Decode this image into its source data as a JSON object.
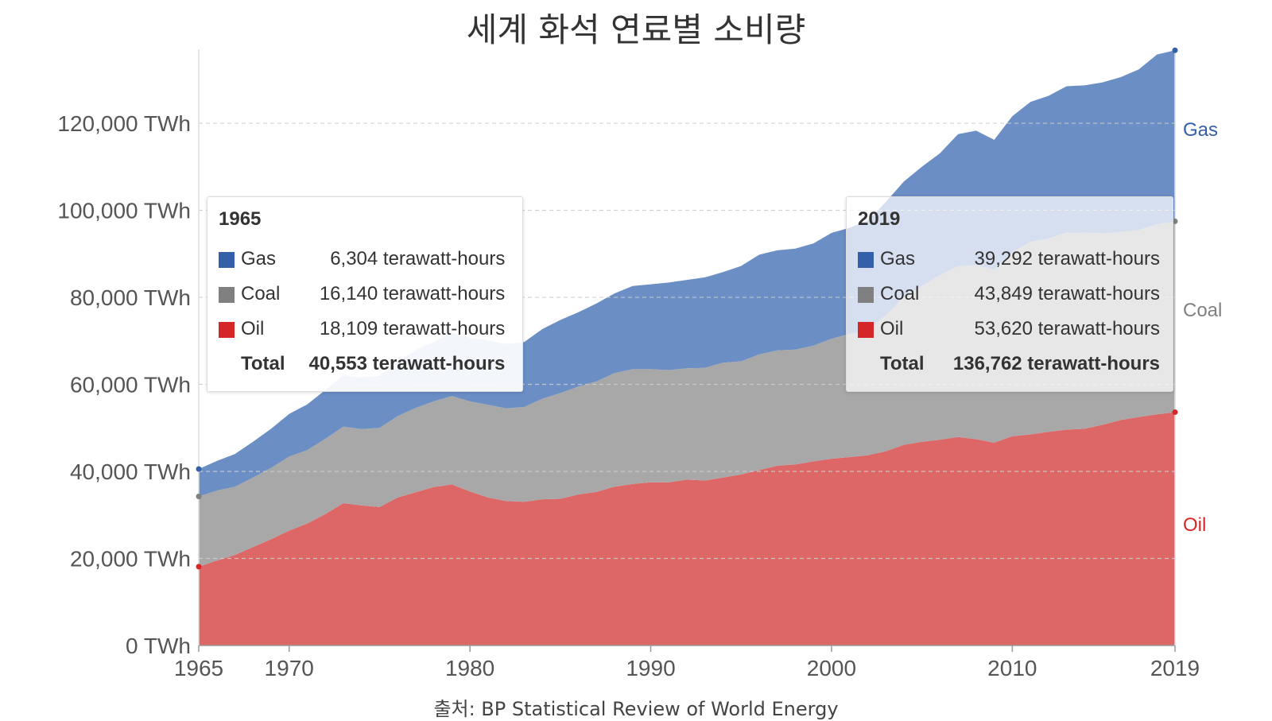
{
  "chart_data": {
    "type": "area",
    "stacked": true,
    "title": "세계 화석 연료별 소비량",
    "source": "출처: BP Statistical Review of World Energy",
    "x": [
      1965,
      1966,
      1967,
      1968,
      1969,
      1970,
      1971,
      1972,
      1973,
      1974,
      1975,
      1976,
      1977,
      1978,
      1979,
      1980,
      1981,
      1982,
      1983,
      1984,
      1985,
      1986,
      1987,
      1988,
      1989,
      1990,
      1991,
      1992,
      1993,
      1994,
      1995,
      1996,
      1997,
      1998,
      1999,
      2000,
      2001,
      2002,
      2003,
      2004,
      2005,
      2006,
      2007,
      2008,
      2009,
      2010,
      2011,
      2012,
      2013,
      2014,
      2015,
      2016,
      2017,
      2018,
      2019
    ],
    "series": [
      {
        "name": "Oil",
        "color": "#d62728",
        "fill": "#dd6666",
        "values": [
          18109,
          19500,
          20800,
          22600,
          24400,
          26400,
          28000,
          30200,
          32700,
          32200,
          31800,
          34000,
          35200,
          36400,
          37000,
          35400,
          34000,
          33200,
          33000,
          33600,
          33700,
          34700,
          35300,
          36500,
          37100,
          37500,
          37500,
          38100,
          37900,
          38600,
          39300,
          40300,
          41300,
          41600,
          42300,
          42900,
          43300,
          43700,
          44600,
          46100,
          46800,
          47300,
          47900,
          47400,
          46600,
          48100,
          48500,
          49100,
          49600,
          49800,
          50700,
          51800,
          52500,
          53100,
          53620
        ]
      },
      {
        "name": "Coal",
        "color": "#808080",
        "fill": "#a8a8a8",
        "values": [
          16140,
          16100,
          15700,
          16000,
          16400,
          17000,
          16900,
          17300,
          17600,
          17500,
          18200,
          18700,
          19400,
          19700,
          20300,
          20700,
          21300,
          21300,
          21800,
          23100,
          24300,
          24800,
          25400,
          26100,
          26400,
          26000,
          25800,
          25600,
          25900,
          26400,
          26000,
          26600,
          26500,
          26400,
          26600,
          27600,
          28300,
          28800,
          31300,
          33900,
          35800,
          37800,
          39300,
          40000,
          39800,
          42200,
          44300,
          44400,
          45300,
          45100,
          44000,
          43200,
          43000,
          43700,
          43849
        ]
      },
      {
        "name": "Gas",
        "color": "#3360a9",
        "fill": "#6b8ec5",
        "values": [
          6304,
          6800,
          7500,
          8200,
          9000,
          9800,
          10500,
          11200,
          11800,
          11900,
          12000,
          12700,
          13200,
          13700,
          14600,
          14600,
          14800,
          14800,
          14900,
          16000,
          16800,
          17100,
          17900,
          18300,
          19100,
          19500,
          20100,
          20300,
          20800,
          20800,
          21900,
          22900,
          23000,
          23200,
          23500,
          24300,
          24400,
          25100,
          26000,
          26600,
          27400,
          28000,
          30300,
          30900,
          29800,
          31300,
          32100,
          32800,
          33600,
          33800,
          34700,
          35600,
          36900,
          39000,
          39292
        ]
      }
    ],
    "xlim": [
      1965,
      2019
    ],
    "ylim": [
      0,
      137000
    ],
    "x_ticks": [
      "1965",
      "1970",
      "1980",
      "1990",
      "2000",
      "2010",
      "2019"
    ],
    "y_ticks": [
      "0 TWh",
      "20,000 TWh",
      "40,000 TWh",
      "60,000 TWh",
      "80,000 TWh",
      "100,000 TWh",
      "120,000 TWh"
    ],
    "y_tick_values": [
      0,
      20000,
      40000,
      60000,
      80000,
      100000,
      120000
    ],
    "grid": true,
    "end_labels": [
      "Gas",
      "Coal",
      "Oil"
    ]
  },
  "tooltips": [
    {
      "year": "1965",
      "rows": [
        {
          "name": "Gas",
          "value": "6,304 terawatt-hours",
          "color": "#3360a9"
        },
        {
          "name": "Coal",
          "value": "16,140 terawatt-hours",
          "color": "#808080"
        },
        {
          "name": "Oil",
          "value": "18,109 terawatt-hours",
          "color": "#d62728"
        }
      ],
      "total_label": "Total",
      "total_value": "40,553 terawatt-hours"
    },
    {
      "year": "2019",
      "rows": [
        {
          "name": "Gas",
          "value": "39,292 terawatt-hours",
          "color": "#3360a9"
        },
        {
          "name": "Coal",
          "value": "43,849 terawatt-hours",
          "color": "#808080"
        },
        {
          "name": "Oil",
          "value": "53,620 terawatt-hours",
          "color": "#d62728"
        }
      ],
      "total_label": "Total",
      "total_value": "136,762 terawatt-hours"
    }
  ]
}
